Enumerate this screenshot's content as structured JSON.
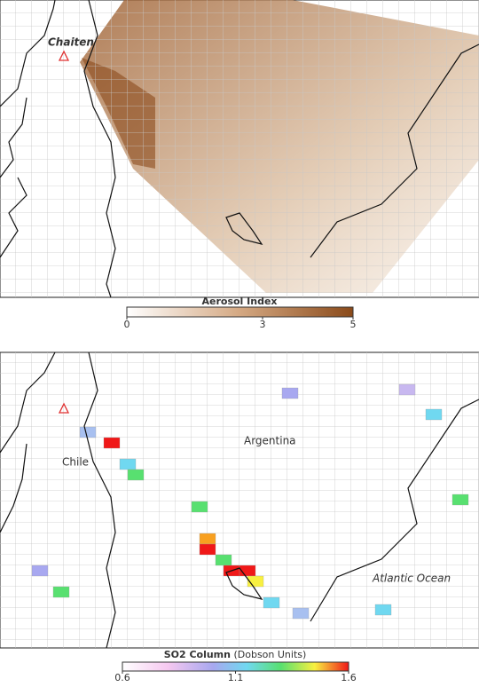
{
  "aerosol_map": {
    "place_label": "Chaiten",
    "colorbar": {
      "title": "Aerosol Index",
      "ticks": [
        0,
        3,
        5
      ]
    }
  },
  "so2_map": {
    "labels": [
      "Chile",
      "Argentina",
      "Atlantic Ocean"
    ],
    "colorbar": {
      "title": "SO2 Column",
      "unit": "(Dobson Units)",
      "ticks": [
        0.6,
        1.1,
        1.6
      ]
    }
  }
}
